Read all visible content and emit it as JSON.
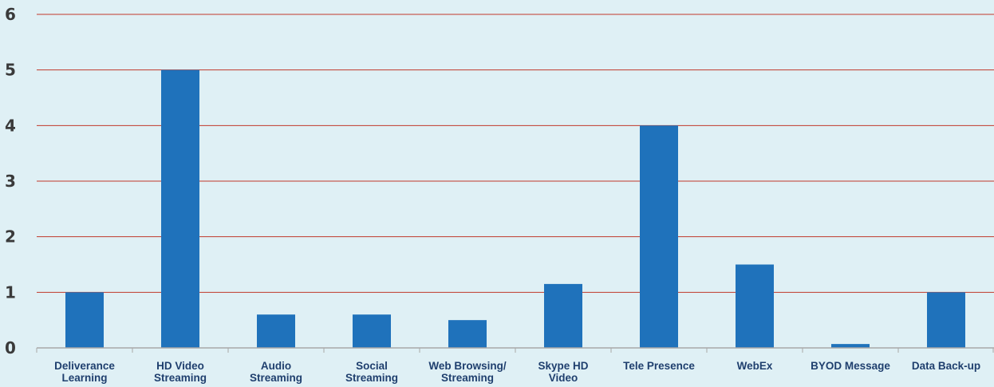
{
  "chart_data": {
    "type": "bar",
    "title": "",
    "xlabel": "",
    "ylabel": "",
    "ylim": [
      0,
      6
    ],
    "yticks": [
      "0",
      "1",
      "2",
      "3",
      "4",
      "5",
      "6"
    ],
    "grid": true,
    "legend": "none",
    "categories": [
      [
        "Deliverance",
        "Learning"
      ],
      [
        "HD Video",
        "Streaming"
      ],
      [
        "Audio",
        "Streaming"
      ],
      [
        "Social",
        "Streaming"
      ],
      [
        "Web Browsing/",
        "Streaming"
      ],
      [
        "Skype HD",
        "Video"
      ],
      [
        "Tele Presence"
      ],
      [
        "WebEx"
      ],
      [
        "BYOD Message"
      ],
      [
        "Data Back-up"
      ]
    ],
    "values": [
      1,
      5,
      0.6,
      0.6,
      0.5,
      1.15,
      4,
      1.5,
      0.07,
      1
    ],
    "colors": {
      "bar": "#1f72bb",
      "grid": "#c0392b",
      "axis": "#a8a8a8",
      "background": "#dff0f5"
    }
  }
}
